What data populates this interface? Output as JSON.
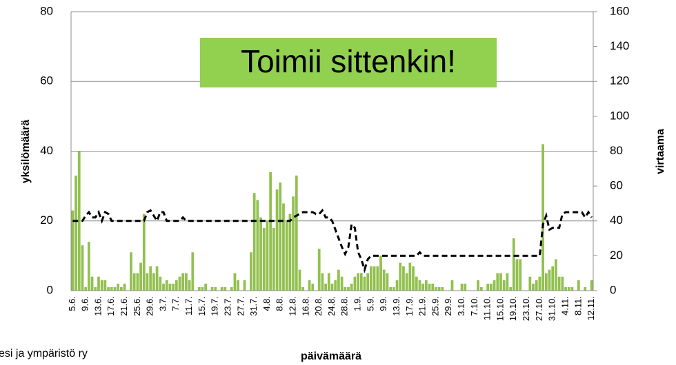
{
  "chart_data": {
    "type": "bar-line",
    "annotation": "Toimii sittenkin!",
    "footer": "esi ja ympäristö ry",
    "x_label": "päivämäärä",
    "y_label": "yksilömäärä",
    "y2_label": "virtaama",
    "categories": [
      "5.6.",
      null,
      null,
      null,
      "9.6.",
      null,
      null,
      null,
      "13.6.",
      null,
      null,
      null,
      "17.6.",
      null,
      null,
      null,
      "21.6.",
      null,
      null,
      null,
      "25.6.",
      null,
      null,
      null,
      "29.6.",
      null,
      null,
      null,
      "3.7.",
      null,
      null,
      null,
      "7.7.",
      null,
      null,
      null,
      "11.7.",
      null,
      null,
      null,
      "15.7.",
      null,
      null,
      null,
      "19.7.",
      null,
      null,
      null,
      "23.7.",
      null,
      null,
      null,
      "27.7.",
      null,
      null,
      null,
      "31.7.",
      null,
      null,
      null,
      "4.8.",
      null,
      null,
      null,
      "8.8.",
      null,
      null,
      null,
      "12.8.",
      null,
      null,
      null,
      "16.8.",
      null,
      null,
      null,
      "20.8.",
      null,
      null,
      null,
      "24.8.",
      null,
      null,
      null,
      "28.8.",
      null,
      null,
      null,
      "1.9.",
      null,
      null,
      null,
      "5.9.",
      null,
      null,
      null,
      "9.9.",
      null,
      null,
      null,
      "13.9.",
      null,
      null,
      null,
      "17.9.",
      null,
      null,
      null,
      "21.9.",
      null,
      null,
      null,
      "25.9.",
      null,
      null,
      null,
      "29.9.",
      null,
      null,
      null,
      "3.10.",
      null,
      null,
      null,
      "7.10.",
      null,
      null,
      null,
      "11.10.",
      null,
      null,
      null,
      "15.10.",
      null,
      null,
      null,
      "19.10.",
      null,
      null,
      null,
      "23.10.",
      null,
      null,
      null,
      "27.10.",
      null,
      null,
      null,
      "31.10.",
      null,
      null,
      null,
      "4.11.",
      null,
      null,
      null,
      "8.11.",
      null,
      null,
      null,
      "12.11."
    ],
    "series": [
      {
        "type": "bar",
        "color": "#92c050",
        "values": [
          23,
          33,
          40,
          13,
          1,
          14,
          4,
          1,
          4,
          3,
          3,
          1,
          1,
          1,
          2,
          1,
          2,
          0,
          11,
          5,
          5,
          8,
          22,
          5,
          7,
          5,
          7,
          4,
          2,
          3,
          2,
          2,
          3,
          4,
          5,
          5,
          3,
          11,
          0,
          1,
          1,
          2,
          0,
          1,
          1,
          0,
          1,
          1,
          0,
          1,
          5,
          3,
          0,
          3,
          0,
          11,
          28,
          26,
          21,
          18,
          20,
          34,
          18,
          29,
          31,
          25,
          20,
          22,
          27,
          33,
          6,
          1,
          0,
          3,
          2,
          0,
          12,
          5,
          2,
          5,
          2,
          3,
          6,
          4,
          1,
          1,
          2,
          4,
          5,
          5,
          4,
          5,
          7,
          7,
          7,
          10,
          6,
          5,
          1,
          1,
          3,
          8,
          7,
          5,
          8,
          7,
          4,
          3,
          2,
          3,
          2,
          2,
          1,
          1,
          1,
          0,
          0,
          3,
          0,
          0,
          2,
          2,
          0,
          0,
          0,
          3,
          1,
          0,
          2,
          2,
          3,
          5,
          5,
          3,
          5,
          1,
          15,
          9,
          9,
          0,
          0,
          4,
          2,
          3,
          4,
          42,
          5,
          6,
          7,
          9,
          4,
          4,
          1,
          1,
          1,
          0,
          3,
          0,
          1,
          0,
          3
        ]
      },
      {
        "type": "line",
        "axis": "y2",
        "color": "#000000",
        "dashed": true,
        "values": [
          40,
          40,
          40,
          40,
          43,
          45,
          42,
          42,
          45,
          40,
          45,
          44,
          40,
          40,
          40,
          40,
          40,
          40,
          40,
          40,
          40,
          40,
          40,
          45,
          46,
          43,
          40,
          45,
          45,
          40,
          40,
          40,
          40,
          40,
          42,
          40,
          40,
          40,
          40,
          40,
          40,
          40,
          40,
          40,
          40,
          40,
          40,
          40,
          40,
          40,
          40,
          40,
          40,
          40,
          40,
          40,
          40,
          40,
          40,
          40,
          40,
          40,
          40,
          40,
          40,
          40,
          40,
          40,
          42,
          43,
          44,
          45,
          45,
          45,
          45,
          44,
          44,
          46,
          42,
          42,
          40,
          35,
          30,
          25,
          21,
          25,
          38,
          36,
          22,
          18,
          12,
          18,
          20,
          20,
          20,
          20,
          20,
          20,
          20,
          20,
          20,
          20,
          20,
          20,
          20,
          20,
          20,
          22,
          20,
          20,
          20,
          20,
          20,
          20,
          20,
          20,
          20,
          20,
          20,
          20,
          20,
          20,
          20,
          20,
          20,
          20,
          20,
          20,
          20,
          20,
          20,
          20,
          20,
          20,
          20,
          20,
          20,
          20,
          20,
          20,
          20,
          20,
          20,
          20,
          20,
          38,
          43,
          35,
          36,
          36,
          36,
          44,
          45,
          45,
          45,
          45,
          45,
          45,
          42,
          45,
          42
        ]
      }
    ],
    "ylim": [
      0,
      80
    ],
    "yticks": [
      0,
      20,
      40,
      60,
      80
    ],
    "y2lim": [
      0,
      160
    ],
    "y2ticks": [
      0,
      20,
      40,
      60,
      80,
      100,
      120,
      140,
      160
    ],
    "grid": true
  }
}
